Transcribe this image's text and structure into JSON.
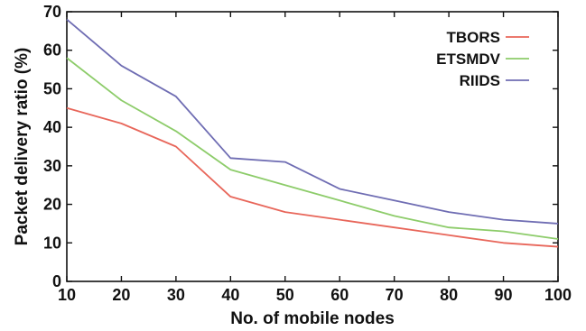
{
  "chart_data": {
    "type": "line",
    "title": "",
    "xlabel": "No. of mobile nodes",
    "ylabel": "Packet delivery ratio (%)",
    "x": [
      10,
      20,
      30,
      40,
      50,
      60,
      70,
      80,
      90,
      100
    ],
    "xlim": [
      10,
      100
    ],
    "ylim": [
      0,
      70
    ],
    "xticks": [
      10,
      20,
      30,
      40,
      50,
      60,
      70,
      80,
      90,
      100
    ],
    "yticks": [
      0,
      10,
      20,
      30,
      40,
      50,
      60,
      70
    ],
    "grid": false,
    "legend_position": "top-right",
    "series": [
      {
        "name": "TBORS",
        "color": "#e8665a",
        "values": [
          45,
          41,
          35,
          22,
          18,
          16,
          14,
          12,
          10,
          9
        ]
      },
      {
        "name": "ETSMDV",
        "color": "#8dcc6a",
        "values": [
          58,
          47,
          39,
          29,
          25,
          21,
          17,
          14,
          13,
          11
        ]
      },
      {
        "name": "RIIDS",
        "color": "#6f6db3",
        "values": [
          68,
          56,
          48,
          32,
          31,
          24,
          21,
          18,
          16,
          15
        ]
      }
    ]
  }
}
